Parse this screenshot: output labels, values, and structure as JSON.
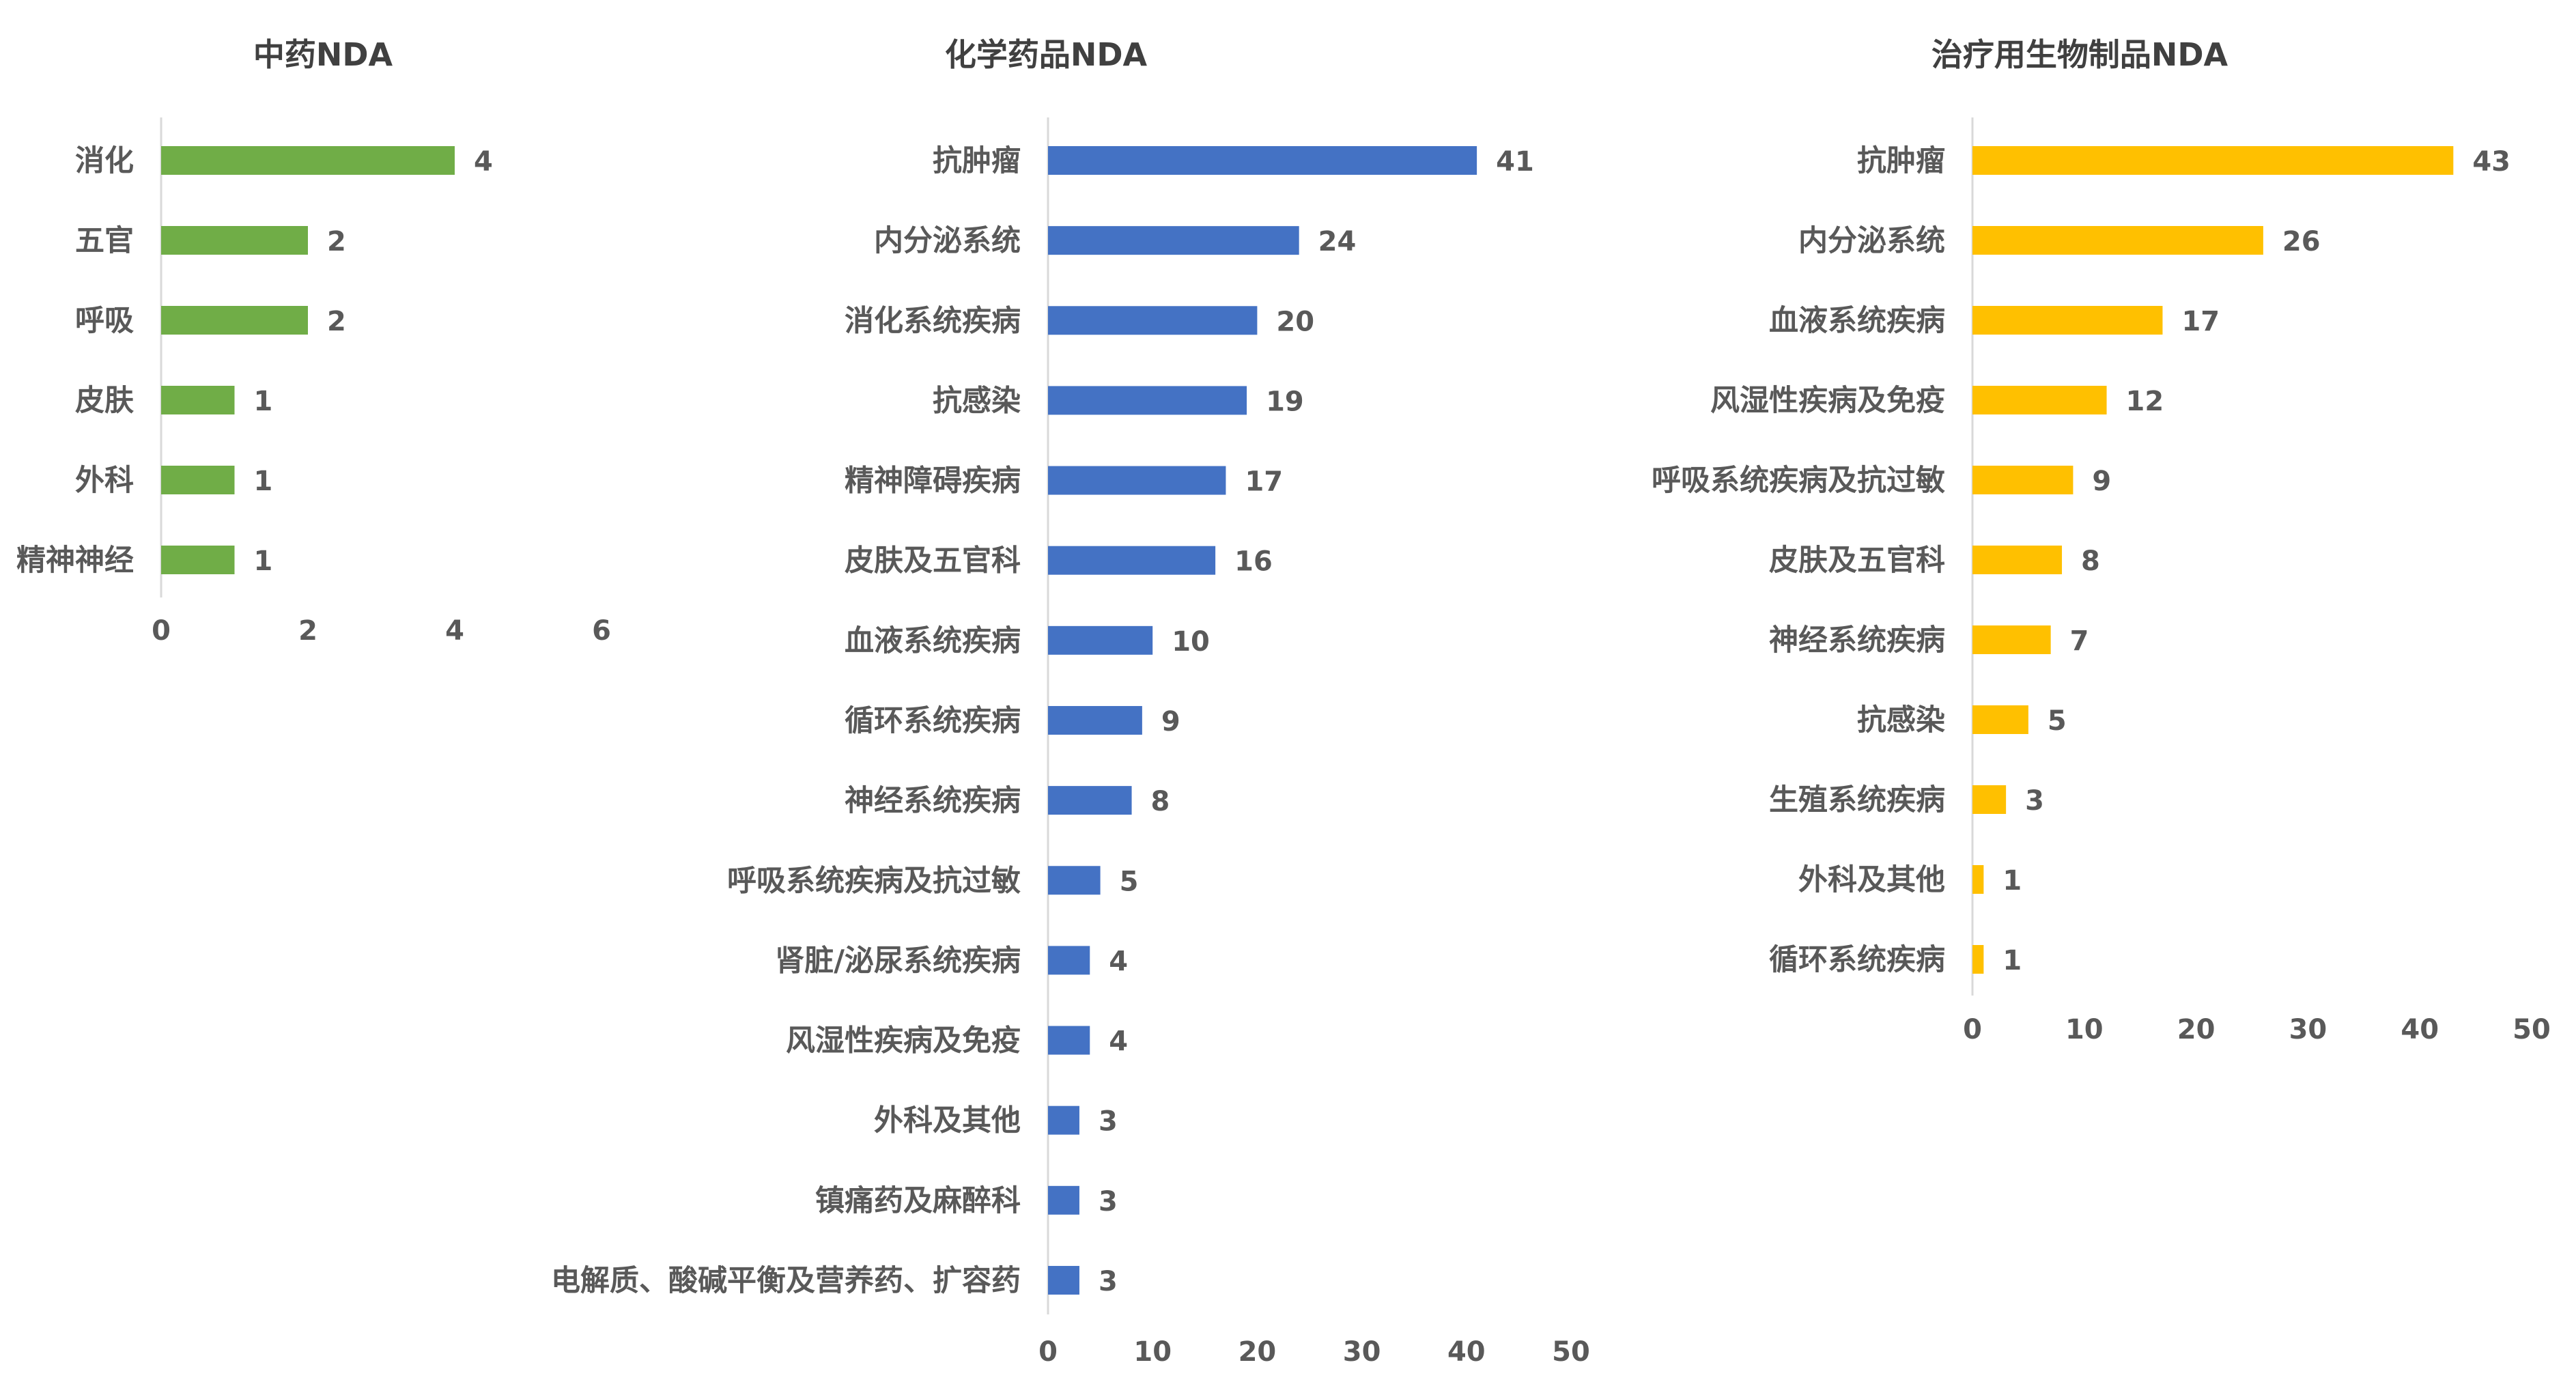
{
  "chart_data": [
    {
      "type": "bar",
      "orientation": "horizontal",
      "title": "中药NDA",
      "categories": [
        "消化",
        "五官",
        "呼吸",
        "皮肤",
        "外科",
        "精神神经"
      ],
      "values": [
        4,
        2,
        2,
        1,
        1,
        1
      ],
      "xlim": [
        0,
        6
      ],
      "xticks": [
        0,
        2,
        4,
        6
      ],
      "color": "#70ad47",
      "grid": false,
      "data_labels": true
    },
    {
      "type": "bar",
      "orientation": "horizontal",
      "title": "化学药品NDA",
      "categories": [
        "抗肿瘤",
        "内分泌系统",
        "消化系统疾病",
        "抗感染",
        "精神障碍疾病",
        "皮肤及五官科",
        "血液系统疾病",
        "循环系统疾病",
        "神经系统疾病",
        "呼吸系统疾病及抗过敏",
        "肾脏/泌尿系统疾病",
        "风湿性疾病及免疫",
        "外科及其他",
        "镇痛药及麻醉科",
        "电解质、酸碱平衡及营养药、扩容药"
      ],
      "values": [
        41,
        24,
        20,
        19,
        17,
        16,
        10,
        9,
        8,
        5,
        4,
        4,
        3,
        3,
        3
      ],
      "xlim": [
        0,
        50
      ],
      "xticks": [
        0,
        10,
        20,
        30,
        40,
        50
      ],
      "color": "#4472c4",
      "grid": false,
      "data_labels": true
    },
    {
      "type": "bar",
      "orientation": "horizontal",
      "title": "治疗用生物制品NDA",
      "categories": [
        "抗肿瘤",
        "内分泌系统",
        "血液系统疾病",
        "风湿性疾病及免疫",
        "呼吸系统疾病及抗过敏",
        "皮肤及五官科",
        "神经系统疾病",
        "抗感染",
        "生殖系统疾病",
        "外科及其他",
        "循环系统疾病"
      ],
      "values": [
        43,
        26,
        17,
        12,
        9,
        8,
        7,
        5,
        3,
        1,
        1
      ],
      "xlim": [
        0,
        50
      ],
      "xticks": [
        0,
        10,
        20,
        30,
        40,
        50
      ],
      "color": "#ffc000",
      "grid": false,
      "data_labels": true
    }
  ]
}
